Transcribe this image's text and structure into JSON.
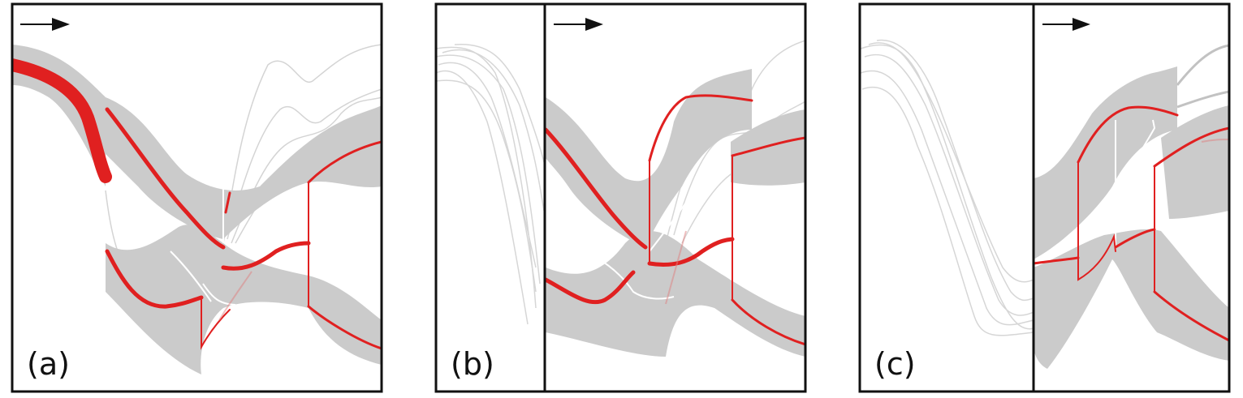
{
  "panels": [
    {
      "id": "a",
      "label": "(a)"
    },
    {
      "id": "b",
      "label": "(b)"
    },
    {
      "id": "c",
      "label": "(c)"
    }
  ],
  "colors": {
    "band": "#cbcbcb",
    "trace": "#d8d8d8",
    "highlight": "#e02020",
    "frame": "#111111",
    "arrow": "#111111"
  },
  "icons": {
    "direction": "right-arrow-icon"
  }
}
